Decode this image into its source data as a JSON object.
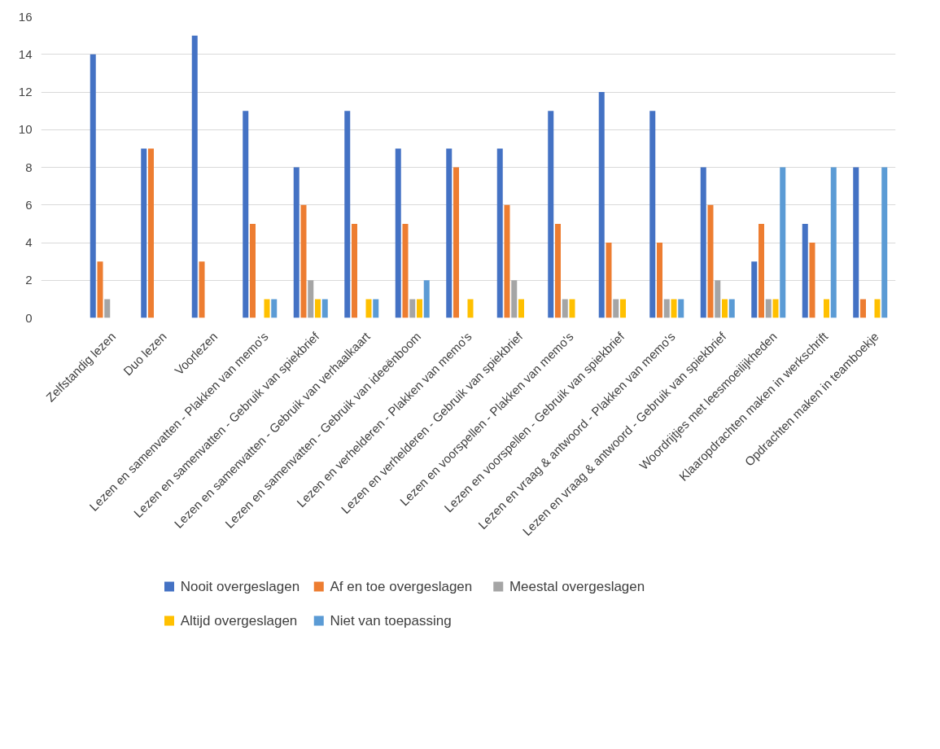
{
  "chart_data": {
    "type": "bar",
    "categories": [
      "Zelfstandig lezen",
      "Duo lezen",
      "Voorlezen",
      "Lezen en samenvatten - Plakken van memo's",
      "Lezen en samenvatten - Gebruik van spiekbrief",
      "Lezen en samenvatten - Gebruik van verhaalkaart",
      "Lezen en samenvatten - Gebruik van ideeënboom",
      "Lezen en verhelderen - Plakken van memo's",
      "Lezen en verhelderen - Gebruik van spiekbrief",
      "Lezen en voorspellen - Plakken van memo's",
      "Lezen en voorspellen - Gebruik van spiekbrief",
      "Lezen en vraag & antwoord - Plakken van memo's",
      "Lezen en vraag & antwoord - Gebruik van spiekbrief",
      "Woordrijtjes met leesmoeilijkheden",
      "Klaaropdrachten maken in werkschrift",
      "Opdrachten maken in teamboekje"
    ],
    "series": [
      {
        "name": "Nooit overgeslagen",
        "color": "#4472c4",
        "values": [
          14,
          9,
          15,
          11,
          8,
          11,
          9,
          9,
          9,
          11,
          12,
          11,
          8,
          3,
          5,
          8
        ]
      },
      {
        "name": "Af en toe overgeslagen",
        "color": "#ed7d31",
        "values": [
          3,
          9,
          3,
          5,
          6,
          5,
          5,
          8,
          6,
          5,
          4,
          4,
          6,
          5,
          4,
          1
        ]
      },
      {
        "name": "Meestal overgeslagen",
        "color": "#a5a5a5",
        "values": [
          1,
          0,
          0,
          0,
          2,
          0,
          1,
          0,
          2,
          1,
          1,
          1,
          2,
          1,
          0,
          0
        ]
      },
      {
        "name": "Altijd overgeslagen",
        "color": "#ffc000",
        "values": [
          0,
          0,
          0,
          1,
          1,
          1,
          1,
          1,
          1,
          1,
          1,
          1,
          1,
          1,
          1,
          1
        ]
      },
      {
        "name": "Niet van toepassing",
        "color": "#5b9bd5",
        "values": [
          0,
          0,
          0,
          1,
          1,
          1,
          2,
          0,
          0,
          0,
          0,
          1,
          1,
          8,
          8,
          8
        ]
      }
    ],
    "ylim": [
      0,
      16
    ],
    "yticks": [
      0,
      2,
      4,
      6,
      8,
      10,
      12,
      14,
      16
    ],
    "grid": "y",
    "legend": "bottom"
  }
}
